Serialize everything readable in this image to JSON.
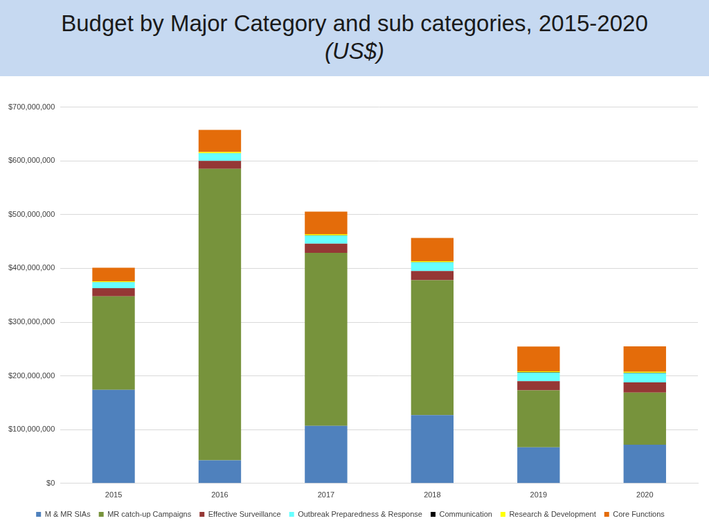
{
  "chart_data": {
    "type": "bar",
    "stacked": true,
    "title": "Budget by Major Category and sub categories, 2015-2020",
    "subtitle": "(US$)",
    "categories": [
      "2015",
      "2016",
      "2017",
      "2018",
      "2019",
      "2020"
    ],
    "series": [
      {
        "name": "M & MR SIAs",
        "color": "#4f81bd",
        "values": [
          174000000,
          43000000,
          107000000,
          127000000,
          67000000,
          72000000
        ]
      },
      {
        "name": "MR catch-up Campaigns",
        "color": "#77933c",
        "values": [
          174000000,
          542000000,
          322000000,
          251000000,
          106000000,
          97000000
        ]
      },
      {
        "name": "Effective Surveillance",
        "color": "#953735",
        "values": [
          15000000,
          15000000,
          17000000,
          17000000,
          17000000,
          19000000
        ]
      },
      {
        "name": "Outbreak Preparedness & Response",
        "color": "#66ffff",
        "values": [
          11000000,
          14000000,
          15000000,
          16000000,
          16000000,
          17000000
        ]
      },
      {
        "name": "Communication",
        "color": "#000000",
        "values": [
          500000,
          500000,
          500000,
          500000,
          500000,
          500000
        ]
      },
      {
        "name": "Research & Development",
        "color": "#ffff00",
        "values": [
          1500000,
          2000000,
          2000000,
          2000000,
          2000000,
          2000000
        ]
      },
      {
        "name": "Core Functions",
        "color": "#e46c0a",
        "values": [
          25000000,
          41000000,
          42000000,
          43000000,
          46000000,
          47500000
        ]
      }
    ],
    "ylim": [
      0,
      700000000
    ],
    "yticks": [
      {
        "value": 0,
        "label": "$0"
      },
      {
        "value": 100000000,
        "label": "$100,000,000"
      },
      {
        "value": 200000000,
        "label": "$200,000,000"
      },
      {
        "value": 300000000,
        "label": "$300,000,000"
      },
      {
        "value": 400000000,
        "label": "$400,000,000"
      },
      {
        "value": 500000000,
        "label": "$500,000,000"
      },
      {
        "value": 600000000,
        "label": "$600,000,000"
      },
      {
        "value": 700000000,
        "label": "$700,000,000"
      }
    ],
    "grid": true,
    "legend": "bottom"
  }
}
